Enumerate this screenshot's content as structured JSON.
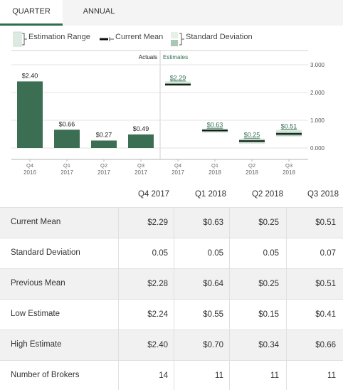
{
  "tabs": [
    {
      "label": "QUARTER",
      "active": true
    },
    {
      "label": "ANNUAL",
      "active": false
    }
  ],
  "legend": {
    "range": "Estimation Range",
    "mean": "Current Mean",
    "stddev": "Standard Deviation"
  },
  "colors": {
    "accent": "#2f6e4e",
    "bar": "#3b6e52",
    "range_fill": "#dcebe1",
    "mean_line": "#111111",
    "stddev": "#a8c8b3"
  },
  "chart_data": {
    "type": "bar",
    "section_labels": [
      "Actuals",
      "Estimates"
    ],
    "categories": [
      {
        "q": "Q4",
        "y": "2016"
      },
      {
        "q": "Q1",
        "y": "2017"
      },
      {
        "q": "Q2",
        "y": "2017"
      },
      {
        "q": "Q3",
        "y": "2017"
      },
      {
        "q": "Q4",
        "y": "2017"
      },
      {
        "q": "Q1",
        "y": "2018"
      },
      {
        "q": "Q2",
        "y": "2018"
      },
      {
        "q": "Q3",
        "y": "2018"
      }
    ],
    "actuals": [
      {
        "value": 2.4,
        "label": "$2.40"
      },
      {
        "value": 0.66,
        "label": "$0.66"
      },
      {
        "value": 0.27,
        "label": "$0.27"
      },
      {
        "value": 0.49,
        "label": "$0.49"
      }
    ],
    "estimates": [
      {
        "mean": 2.29,
        "label": "$2.29",
        "low": 2.24,
        "high": 2.4,
        "stddev": 0.05
      },
      {
        "mean": 0.63,
        "label": "$0.63",
        "low": 0.55,
        "high": 0.7,
        "stddev": 0.05
      },
      {
        "mean": 0.25,
        "label": "$0.25",
        "low": 0.15,
        "high": 0.34,
        "stddev": 0.05
      },
      {
        "mean": 0.51,
        "label": "$0.51",
        "low": 0.41,
        "high": 0.66,
        "stddev": 0.07
      }
    ],
    "y_ticks": [
      "3.000",
      "2.000",
      "1.000",
      "0.000"
    ],
    "ylim": [
      0,
      3
    ]
  },
  "table": {
    "headers": [
      "Q4 2017",
      "Q1 2018",
      "Q2 2018",
      "Q3 2018"
    ],
    "rows": [
      {
        "label": "Current Mean",
        "values": [
          "$2.29",
          "$0.63",
          "$0.25",
          "$0.51"
        ]
      },
      {
        "label": "Standard Deviation",
        "values": [
          "0.05",
          "0.05",
          "0.05",
          "0.07"
        ]
      },
      {
        "label": "Previous Mean",
        "values": [
          "$2.28",
          "$0.64",
          "$0.25",
          "$0.51"
        ]
      },
      {
        "label": "Low Estimate",
        "values": [
          "$2.24",
          "$0.55",
          "$0.15",
          "$0.41"
        ]
      },
      {
        "label": "High Estimate",
        "values": [
          "$2.40",
          "$0.70",
          "$0.34",
          "$0.66"
        ]
      },
      {
        "label": "Number of Brokers",
        "values": [
          "14",
          "11",
          "11",
          "11"
        ]
      }
    ]
  }
}
